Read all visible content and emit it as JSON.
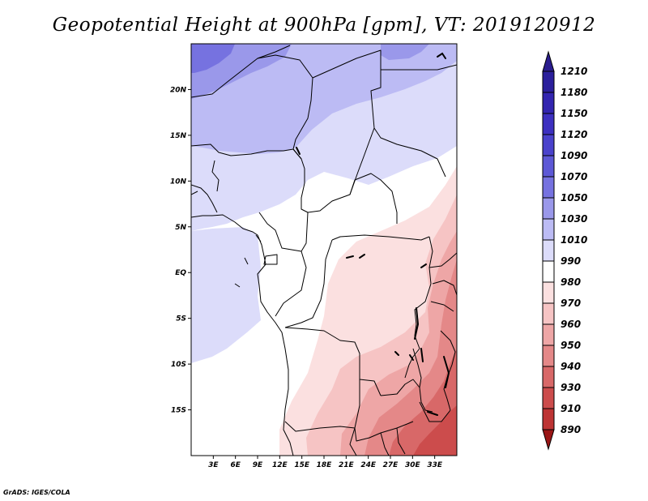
{
  "title": "Geopotential Height at 900hPa [gpm], VT: 2019120912",
  "credit": "GrADS: IGES/COLA",
  "map": {
    "lon_range": [
      0,
      36
    ],
    "lat_range": [
      -20,
      25
    ],
    "y_tick_labels": [
      {
        "label": "20N",
        "lat": 20
      },
      {
        "label": "15N",
        "lat": 15
      },
      {
        "label": "10N",
        "lat": 10
      },
      {
        "label": "5N",
        "lat": 5
      },
      {
        "label": "EQ",
        "lat": 0
      },
      {
        "label": "5S",
        "lat": -5
      },
      {
        "label": "10S",
        "lat": -10
      },
      {
        "label": "15S",
        "lat": -15
      }
    ],
    "x_tick_labels": [
      {
        "label": "3E",
        "lon": 3
      },
      {
        "label": "6E",
        "lon": 6
      },
      {
        "label": "9E",
        "lon": 9
      },
      {
        "label": "12E",
        "lon": 12
      },
      {
        "label": "15E",
        "lon": 15
      },
      {
        "label": "18E",
        "lon": 18
      },
      {
        "label": "21E",
        "lon": 21
      },
      {
        "label": "24E",
        "lon": 24
      },
      {
        "label": "27E",
        "lon": 27
      },
      {
        "label": "30E",
        "lon": 30
      },
      {
        "label": "33E",
        "lon": 33
      }
    ]
  },
  "colorbar": {
    "units": "gpm",
    "levels": [
      {
        "label": "1210",
        "color": "#2b1f9c"
      },
      {
        "label": "1180",
        "color": "#3325b0"
      },
      {
        "label": "1150",
        "color": "#3d30c0"
      },
      {
        "label": "1120",
        "color": "#4a42cc"
      },
      {
        "label": "1090",
        "color": "#5d58d6"
      },
      {
        "label": "1070",
        "color": "#7672e0"
      },
      {
        "label": "1050",
        "color": "#9a98ea"
      },
      {
        "label": "1030",
        "color": "#bcbbf4"
      },
      {
        "label": "1010",
        "color": "#dcdcfa"
      },
      {
        "label": "990",
        "color": "#ffffff"
      },
      {
        "label": "980",
        "color": "#fbe0e0"
      },
      {
        "label": "970",
        "color": "#f6c4c4"
      },
      {
        "label": "960",
        "color": "#eea6a6"
      },
      {
        "label": "950",
        "color": "#e48888"
      },
      {
        "label": "940",
        "color": "#d86868"
      },
      {
        "label": "930",
        "color": "#cc4c4c"
      },
      {
        "label": "910",
        "color": "#bd3434"
      },
      {
        "label": "890",
        "color": "#a82020"
      }
    ],
    "top_color": "#2a1c8e",
    "bottom_color": "#9a1515"
  }
}
